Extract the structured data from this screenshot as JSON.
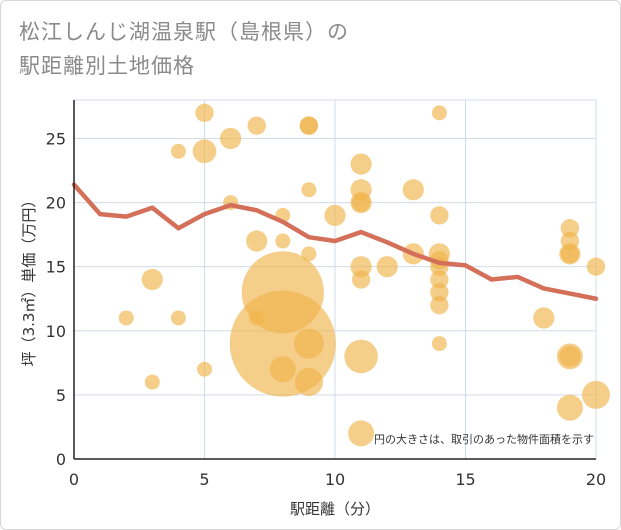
{
  "title_lines": [
    "松江しんじ湖温泉駅（島根県）の",
    "駅距離別土地価格"
  ],
  "chart_data": {
    "type": "scatter",
    "title": "松江しんじ湖温泉駅（島根県）の駅距離別土地価格",
    "xlabel": "駅距離（分）",
    "ylabel": "坪（3.3㎡）単価（万円）",
    "xlim": [
      0,
      20
    ],
    "ylim": [
      0,
      28
    ],
    "xticks": [
      "0",
      "5",
      "10",
      "15",
      "20"
    ],
    "yticks": [
      "0",
      "5",
      "10",
      "15",
      "20",
      "25"
    ],
    "grid": true,
    "note": "円の大きさは、取引のあった物件面積を示す",
    "colors": {
      "points": "#f0b44a",
      "line": "#d4705a",
      "grid": "#d0dce8"
    },
    "points": [
      {
        "x": 2,
        "y": 11,
        "s": 1
      },
      {
        "x": 3,
        "y": 14,
        "s": 2
      },
      {
        "x": 3,
        "y": 6,
        "s": 1
      },
      {
        "x": 4,
        "y": 24,
        "s": 1
      },
      {
        "x": 4,
        "y": 11,
        "s": 1
      },
      {
        "x": 5,
        "y": 27,
        "s": 1.5
      },
      {
        "x": 5,
        "y": 24,
        "s": 2.5
      },
      {
        "x": 5,
        "y": 7,
        "s": 1
      },
      {
        "x": 6,
        "y": 25,
        "s": 2
      },
      {
        "x": 6,
        "y": 20,
        "s": 1
      },
      {
        "x": 7,
        "y": 26,
        "s": 1.5
      },
      {
        "x": 7,
        "y": 17,
        "s": 2
      },
      {
        "x": 7,
        "y": 11,
        "s": 1
      },
      {
        "x": 8,
        "y": 19,
        "s": 1
      },
      {
        "x": 8,
        "y": 17,
        "s": 1
      },
      {
        "x": 8,
        "y": 13,
        "s": 30
      },
      {
        "x": 8,
        "y": 9,
        "s": 50
      },
      {
        "x": 8,
        "y": 7,
        "s": 3
      },
      {
        "x": 9,
        "y": 26,
        "s": 1.5
      },
      {
        "x": 9,
        "y": 26,
        "s": 1.5
      },
      {
        "x": 9,
        "y": 21,
        "s": 1
      },
      {
        "x": 9,
        "y": 16,
        "s": 1
      },
      {
        "x": 9,
        "y": 9,
        "s": 4
      },
      {
        "x": 9,
        "y": 6,
        "s": 3.5
      },
      {
        "x": 10,
        "y": 19,
        "s": 2
      },
      {
        "x": 11,
        "y": 23,
        "s": 2
      },
      {
        "x": 11,
        "y": 21,
        "s": 2
      },
      {
        "x": 11,
        "y": 20,
        "s": 2
      },
      {
        "x": 11,
        "y": 20,
        "s": 1.5
      },
      {
        "x": 11,
        "y": 15,
        "s": 2
      },
      {
        "x": 11,
        "y": 14,
        "s": 1.5
      },
      {
        "x": 11,
        "y": 8,
        "s": 5
      },
      {
        "x": 11,
        "y": 2,
        "s": 3
      },
      {
        "x": 12,
        "y": 15,
        "s": 2
      },
      {
        "x": 13,
        "y": 21,
        "s": 2
      },
      {
        "x": 13,
        "y": 16,
        "s": 2
      },
      {
        "x": 14,
        "y": 27,
        "s": 1
      },
      {
        "x": 14,
        "y": 19,
        "s": 1.5
      },
      {
        "x": 14,
        "y": 16,
        "s": 2
      },
      {
        "x": 14,
        "y": 15.5,
        "s": 1.5
      },
      {
        "x": 14,
        "y": 15,
        "s": 1.5
      },
      {
        "x": 14,
        "y": 14,
        "s": 1.5
      },
      {
        "x": 14,
        "y": 13,
        "s": 1.5
      },
      {
        "x": 14,
        "y": 12,
        "s": 1.5
      },
      {
        "x": 14,
        "y": 9,
        "s": 1
      },
      {
        "x": 18,
        "y": 11,
        "s": 2
      },
      {
        "x": 19,
        "y": 18,
        "s": 1.5
      },
      {
        "x": 19,
        "y": 17,
        "s": 1.5
      },
      {
        "x": 19,
        "y": 16,
        "s": 2
      },
      {
        "x": 19,
        "y": 16,
        "s": 1.5
      },
      {
        "x": 19,
        "y": 8,
        "s": 3
      },
      {
        "x": 19,
        "y": 8,
        "s": 2
      },
      {
        "x": 19,
        "y": 4,
        "s": 3
      },
      {
        "x": 20,
        "y": 15,
        "s": 1.5
      },
      {
        "x": 20,
        "y": 5,
        "s": 3.5
      }
    ],
    "series": [
      {
        "x": [
          0,
          1,
          2,
          3,
          4,
          5,
          6,
          7,
          8,
          9,
          10,
          11,
          12,
          13,
          14,
          15,
          16,
          17,
          18,
          19,
          20
        ],
        "values": [
          21.4,
          19.1,
          18.9,
          19.6,
          18.0,
          19.1,
          19.8,
          19.4,
          18.5,
          17.3,
          17.0,
          17.7,
          16.9,
          16.0,
          15.3,
          15.1,
          14.0,
          14.2,
          13.3,
          12.9,
          12.5
        ]
      }
    ]
  }
}
